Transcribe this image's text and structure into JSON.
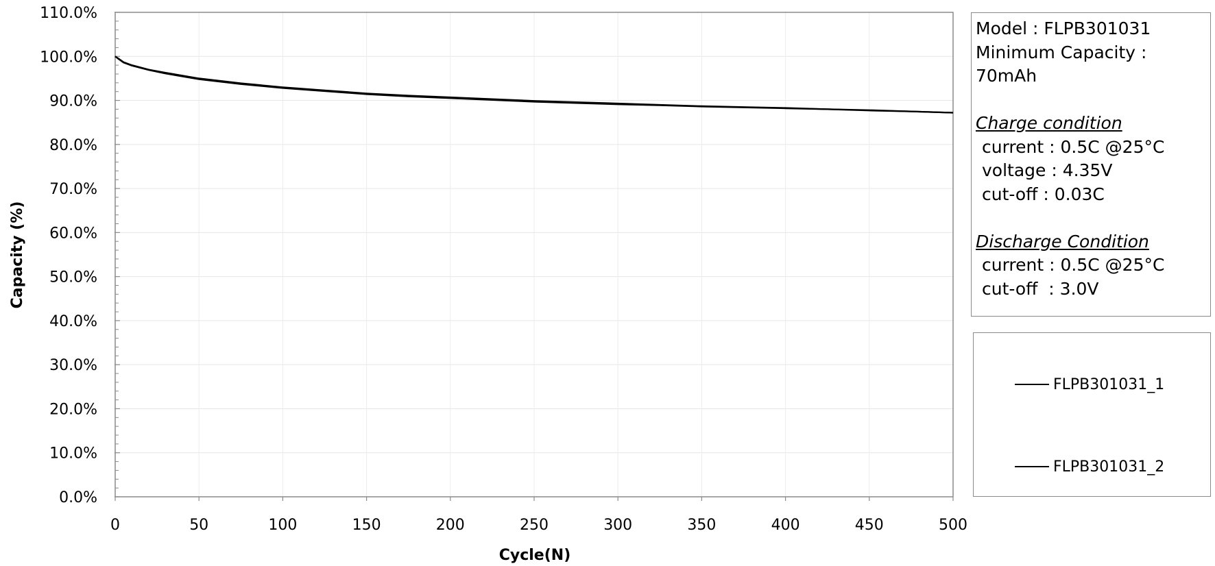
{
  "chart_data": {
    "type": "line",
    "xlabel": "Cycle(N)",
    "ylabel": "Capacity (%)",
    "xlim": [
      0,
      500
    ],
    "ylim": [
      0,
      110
    ],
    "x_ticks": [
      "0",
      "50",
      "100",
      "150",
      "200",
      "250",
      "300",
      "350",
      "400",
      "450",
      "500"
    ],
    "y_ticks": [
      "0.0%",
      "10.0%",
      "20.0%",
      "30.0%",
      "40.0%",
      "50.0%",
      "60.0%",
      "70.0%",
      "80.0%",
      "90.0%",
      "100.0%",
      "110.0%"
    ],
    "grid": true,
    "legend_position": "right",
    "series": [
      {
        "name": "FLPB301031_1",
        "color": "#000000",
        "x": [
          0,
          2,
          5,
          10,
          20,
          30,
          50,
          75,
          100,
          125,
          150,
          175,
          200,
          225,
          250,
          275,
          300,
          325,
          350,
          375,
          400,
          425,
          450,
          475,
          500
        ],
        "y": [
          100.0,
          99.5,
          98.7,
          98.0,
          97.0,
          96.3,
          95.0,
          93.9,
          93.0,
          92.3,
          91.6,
          91.1,
          90.7,
          90.3,
          89.9,
          89.6,
          89.3,
          89.0,
          88.7,
          88.5,
          88.3,
          88.0,
          87.8,
          87.5,
          87.2
        ]
      },
      {
        "name": "FLPB301031_2",
        "color": "#000000",
        "x": [
          0,
          2,
          5,
          10,
          20,
          30,
          50,
          75,
          100,
          125,
          150,
          175,
          200,
          225,
          250,
          275,
          300,
          325,
          350,
          375,
          400,
          425,
          450,
          475,
          500
        ],
        "y": [
          100.0,
          99.4,
          98.6,
          97.9,
          96.9,
          96.1,
          94.8,
          93.7,
          92.8,
          92.1,
          91.4,
          90.9,
          90.5,
          90.1,
          89.7,
          89.4,
          89.1,
          88.9,
          88.6,
          88.4,
          88.2,
          88.0,
          87.7,
          87.5,
          87.2
        ]
      }
    ]
  },
  "info": {
    "model": "Model : FLPB301031",
    "min_capacity_1": "Minimum Capacity :",
    "min_capacity_2": "70mAh",
    "charge_heading": "Charge condition",
    "charge_current": "current : 0.5C @25°C",
    "charge_voltage": "voltage : 4.35V",
    "charge_cutoff": "cut-off : 0.03C",
    "discharge_heading": "Discharge Condition",
    "discharge_current": "current : 0.5C @25°C",
    "discharge_cutoff": "cut-off  : 3.0V"
  }
}
